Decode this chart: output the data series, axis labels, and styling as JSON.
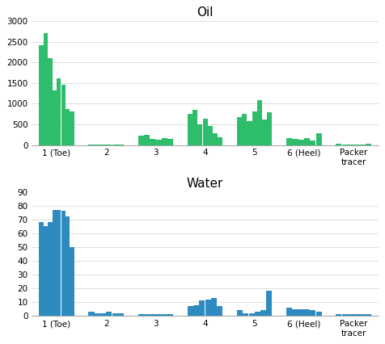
{
  "oil_title": "Oil",
  "water_title": "Water",
  "groups": [
    "1 (Toe)",
    "2",
    "3",
    "4",
    "5",
    "6 (Heel)",
    "Packer\ntracer"
  ],
  "oil_ylim": [
    0,
    3000
  ],
  "water_ylim": [
    0,
    90
  ],
  "oil_yticks": [
    0,
    500,
    1000,
    1500,
    2000,
    2500,
    3000
  ],
  "water_yticks": [
    0,
    10,
    20,
    30,
    40,
    50,
    60,
    70,
    80,
    90
  ],
  "oil_data": [
    [
      2420,
      2700,
      2100,
      1320,
      1620,
      1460,
      880,
      820
    ],
    [
      10,
      8,
      5,
      5,
      5,
      5
    ],
    [
      230,
      240,
      150,
      130,
      160,
      150
    ],
    [
      760,
      860,
      490,
      640,
      460,
      280,
      190
    ],
    [
      670,
      760,
      570,
      810,
      1080,
      620,
      800
    ],
    [
      170,
      145,
      125,
      165,
      100,
      290
    ],
    [
      25,
      20,
      18,
      18,
      18,
      25
    ]
  ],
  "water_data": [
    [
      68,
      65,
      68,
      77,
      77,
      76,
      72,
      50
    ],
    [
      3,
      2,
      2,
      3,
      2,
      2
    ],
    [
      1,
      1,
      1,
      1,
      1,
      1
    ],
    [
      7,
      8,
      11,
      12,
      13,
      7
    ],
    [
      4,
      2,
      2,
      3,
      4,
      18
    ],
    [
      6,
      5,
      5,
      5,
      4,
      3
    ],
    [
      1,
      1,
      1,
      1,
      1,
      1
    ]
  ],
  "oil_color": "#2ebd6b",
  "water_color": "#2e8bc0",
  "background": "#ffffff",
  "grid_color": "#d8d8d8",
  "title_fontsize": 11,
  "tick_fontsize": 7.5
}
